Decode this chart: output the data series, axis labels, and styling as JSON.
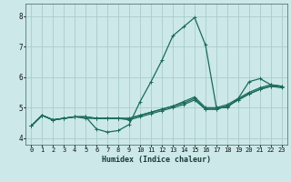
{
  "xlabel": "Humidex (Indice chaleur)",
  "ylabel": "",
  "bg_color": "#cce8e8",
  "grid_color": "#aacccc",
  "line_color": "#1a6b5a",
  "xlim": [
    -0.5,
    23.5
  ],
  "ylim": [
    3.8,
    8.4
  ],
  "xticks": [
    0,
    1,
    2,
    3,
    4,
    5,
    6,
    7,
    8,
    9,
    10,
    11,
    12,
    13,
    14,
    15,
    16,
    17,
    18,
    19,
    20,
    21,
    22,
    23
  ],
  "yticks": [
    4,
    5,
    6,
    7,
    8
  ],
  "lines": [
    {
      "x": [
        0,
        1,
        2,
        3,
        4,
        5,
        6,
        7,
        8,
        9,
        10,
        11,
        12,
        13,
        14,
        15,
        16,
        17,
        18,
        19,
        20,
        21,
        22,
        23
      ],
      "y": [
        4.4,
        4.75,
        4.6,
        4.65,
        4.7,
        4.7,
        4.3,
        4.2,
        4.25,
        4.45,
        5.2,
        5.85,
        6.55,
        7.35,
        7.65,
        7.95,
        7.05,
        5.0,
        5.0,
        5.3,
        5.85,
        5.95,
        5.75,
        5.7
      ]
    },
    {
      "x": [
        0,
        1,
        2,
        3,
        4,
        5,
        6,
        7,
        8,
        9,
        10,
        11,
        12,
        13,
        14,
        15,
        16,
        17,
        18,
        19,
        20,
        21,
        22,
        23
      ],
      "y": [
        4.4,
        4.75,
        4.6,
        4.65,
        4.7,
        4.7,
        4.65,
        4.65,
        4.65,
        4.65,
        4.75,
        4.85,
        4.95,
        5.05,
        5.2,
        5.35,
        5.0,
        5.0,
        5.1,
        5.3,
        5.5,
        5.65,
        5.75,
        5.7
      ]
    },
    {
      "x": [
        0,
        1,
        2,
        3,
        4,
        5,
        6,
        7,
        8,
        9,
        10,
        11,
        12,
        13,
        14,
        15,
        16,
        17,
        18,
        19,
        20,
        21,
        22,
        23
      ],
      "y": [
        4.4,
        4.75,
        4.6,
        4.65,
        4.7,
        4.7,
        4.65,
        4.65,
        4.65,
        4.6,
        4.7,
        4.8,
        4.9,
        5.0,
        5.1,
        5.25,
        4.95,
        4.95,
        5.05,
        5.25,
        5.45,
        5.6,
        5.7,
        5.65
      ]
    },
    {
      "x": [
        0,
        1,
        2,
        3,
        4,
        5,
        6,
        7,
        8,
        9,
        10,
        11,
        12,
        13,
        14,
        15,
        16,
        17,
        18,
        19,
        20,
        21,
        22,
        23
      ],
      "y": [
        4.4,
        4.75,
        4.6,
        4.65,
        4.7,
        4.65,
        4.65,
        4.65,
        4.65,
        4.65,
        4.75,
        4.85,
        4.95,
        5.05,
        5.15,
        5.3,
        4.95,
        4.95,
        5.05,
        5.25,
        5.45,
        5.6,
        5.7,
        5.7
      ]
    }
  ],
  "marker": "+",
  "markersize": 3,
  "linewidth": 0.9
}
